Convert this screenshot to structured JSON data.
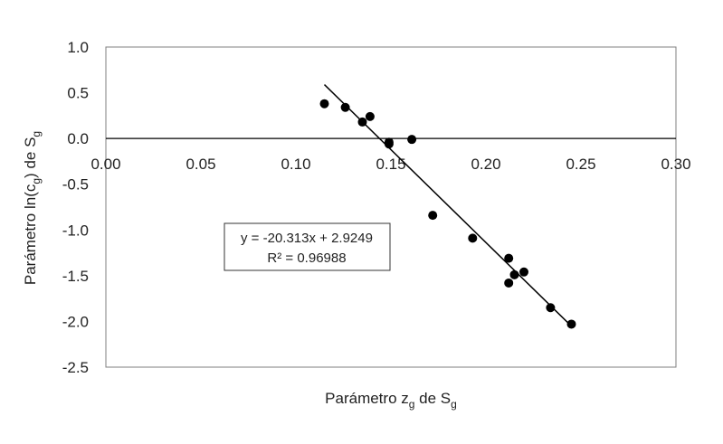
{
  "chart_data": {
    "type": "scatter",
    "title": "",
    "xlabel": {
      "main": "Parámetro z",
      "sub1": "g",
      "mid": " de S",
      "sub2": "g"
    },
    "ylabel": {
      "main": "Parámetro ln(c",
      "sub1": "g",
      "mid": ") de S",
      "sub2": "g"
    },
    "xlim": [
      0.0,
      0.3
    ],
    "ylim": [
      -2.5,
      1.0
    ],
    "x_ticks": [
      "0.00",
      "0.05",
      "0.10",
      "0.15",
      "0.20",
      "0.25",
      "0.30"
    ],
    "y_ticks": [
      "1.0",
      "0.5",
      "0.0",
      "-0.5",
      "-1.0",
      "-1.5",
      "-2.0",
      "-2.5"
    ],
    "grid": false,
    "legend": "none",
    "series": [
      {
        "color": "#000000",
        "points": [
          {
            "x": 0.115,
            "y": 0.38
          },
          {
            "x": 0.126,
            "y": 0.34
          },
          {
            "x": 0.135,
            "y": 0.18
          },
          {
            "x": 0.139,
            "y": 0.24
          },
          {
            "x": 0.149,
            "y": -0.04
          },
          {
            "x": 0.149,
            "y": -0.06
          },
          {
            "x": 0.161,
            "y": -0.01
          },
          {
            "x": 0.172,
            "y": -0.84
          },
          {
            "x": 0.193,
            "y": -1.09
          },
          {
            "x": 0.212,
            "y": -1.31
          },
          {
            "x": 0.212,
            "y": -1.58
          },
          {
            "x": 0.215,
            "y": -1.49
          },
          {
            "x": 0.22,
            "y": -1.46
          },
          {
            "x": 0.234,
            "y": -1.85
          },
          {
            "x": 0.245,
            "y": -2.03
          }
        ]
      }
    ],
    "trendline": {
      "slope": -20.313,
      "intercept": 2.9249,
      "x_range": [
        0.115,
        0.245
      ],
      "color": "#000000"
    },
    "annotation": {
      "equation": "y = -20.313x + 2.9249",
      "r2": "R² = 0.96988"
    }
  }
}
